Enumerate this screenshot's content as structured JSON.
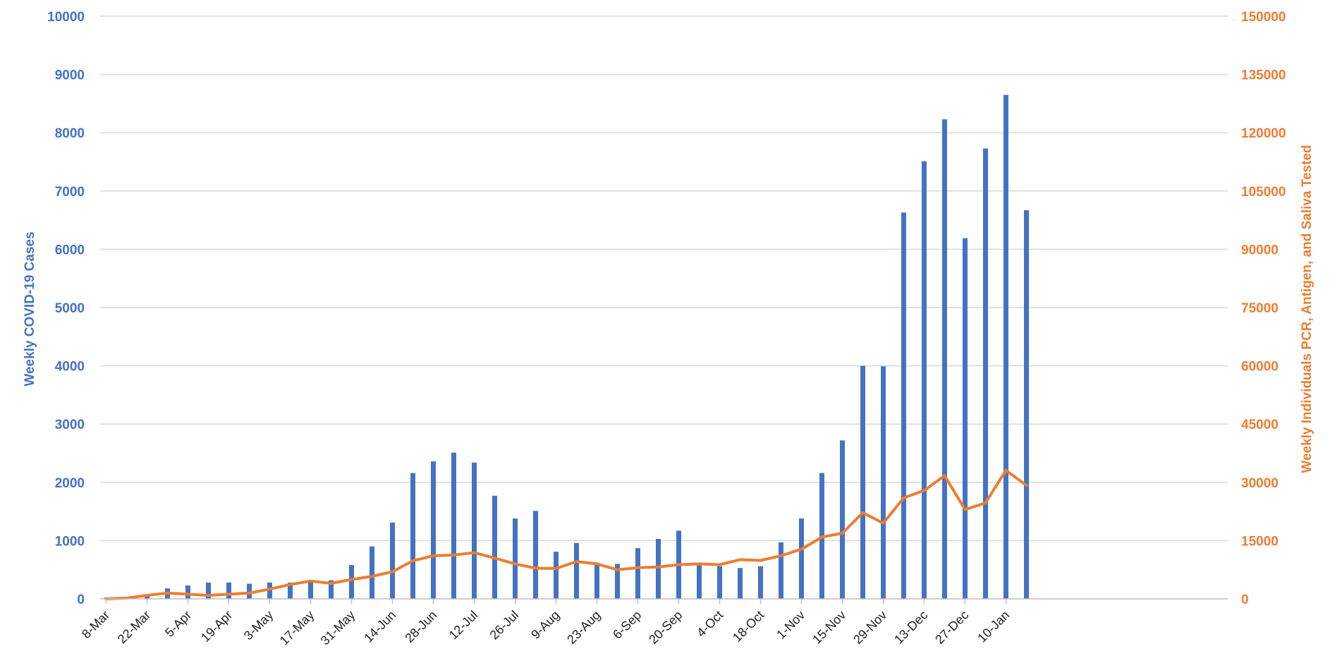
{
  "chart_data": {
    "type": "bar",
    "title": "",
    "xlabel": "",
    "ylabel": "Weekly COVID-19 Cases",
    "ylabel_right": "Weekly Individuals PCR, Antigen, and Saliva Tested",
    "ylim": [
      0,
      10000
    ],
    "ylim_right": [
      0,
      150000
    ],
    "yticks": [
      "0",
      "1000",
      "2000",
      "3000",
      "4000",
      "5000",
      "6000",
      "7000",
      "8000",
      "9000",
      "10000"
    ],
    "yticks_right": [
      "0",
      "15000",
      "30000",
      "45000",
      "60000",
      "75000",
      "90000",
      "105000",
      "120000",
      "135000",
      "150000"
    ],
    "x_tick_labels": [
      "8-Mar",
      "22-Mar",
      "5-Apr",
      "19-Apr",
      "3-May",
      "17-May",
      "31-May",
      "14-Jun",
      "28-Jun",
      "12-Jul",
      "26-Jul",
      "9-Aug",
      "23-Aug",
      "6-Sep",
      "20-Sep",
      "4-Oct",
      "18-Oct",
      "1-Nov",
      "15-Nov",
      "29-Nov",
      "13-Dec",
      "27-Dec",
      "10-Jan"
    ],
    "grid": true,
    "colors": {
      "bars": "#4472c4",
      "line": "#ed7d31",
      "grid": "#d9d9d9"
    },
    "series": [
      {
        "name": "Weekly COVID-19 Cases",
        "type": "bar",
        "axis": "left",
        "values": [
          20,
          30,
          60,
          180,
          230,
          280,
          280,
          260,
          280,
          280,
          300,
          320,
          580,
          900,
          1310,
          2160,
          2360,
          2510,
          2340,
          1770,
          1380,
          1510,
          810,
          960,
          620,
          600,
          870,
          1030,
          1170,
          580,
          560,
          530,
          560,
          970,
          1380,
          2160,
          2720,
          4000,
          3990,
          6630,
          7510,
          8230,
          6190,
          7730,
          8650,
          6670
        ]
      },
      {
        "name": "Weekly Individuals PCR, Antigen, and Saliva Tested",
        "type": "line",
        "axis": "right",
        "values": [
          0,
          200,
          900,
          1500,
          1200,
          900,
          1200,
          1500,
          2500,
          3700,
          4600,
          4000,
          5000,
          5800,
          7000,
          9800,
          11100,
          11300,
          11900,
          10500,
          9000,
          7900,
          7800,
          9600,
          9000,
          7500,
          8000,
          8200,
          8800,
          9000,
          8800,
          10100,
          9900,
          11100,
          12800,
          15900,
          16900,
          22200,
          19500,
          26000,
          27900,
          31700,
          23000,
          24700,
          33100,
          29200
        ]
      }
    ]
  }
}
